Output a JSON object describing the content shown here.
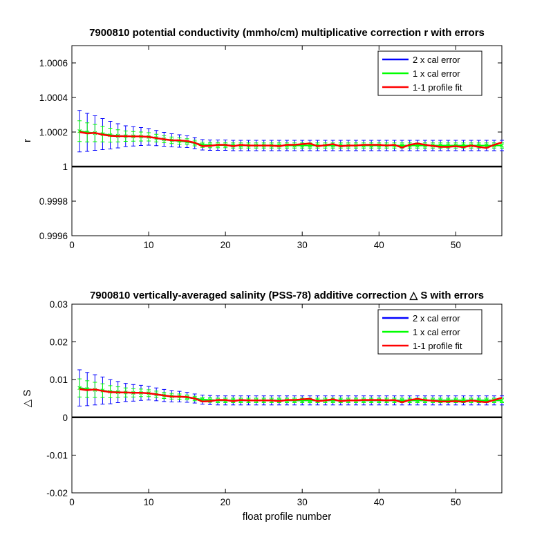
{
  "chart_data": [
    {
      "type": "line",
      "title": "7900810 potential conductivity (mmho/cm) multiplicative correction r with errors",
      "xlabel": "",
      "ylabel": "r",
      "xlim": [
        0,
        56
      ],
      "ylim": [
        0.9996,
        1.0007
      ],
      "x_ticks": [
        0,
        10,
        20,
        30,
        40,
        50
      ],
      "y_ticks": [
        0.9996,
        0.9998,
        1,
        1.0002,
        1.0004,
        1.0006
      ],
      "y_tick_labels": [
        "0.9996",
        "0.9998",
        "1",
        "1.0002",
        "1.0004",
        "1.0006"
      ],
      "reference_line": 1,
      "legend": {
        "position": "top-right",
        "entries": [
          {
            "label": "2 x cal error",
            "color": "#0000ff"
          },
          {
            "label": "1 x cal error",
            "color": "#00ff00"
          },
          {
            "label": "1-1 profile fit",
            "color": "#ff0000"
          }
        ]
      },
      "x": [
        1,
        2,
        3,
        4,
        5,
        6,
        7,
        8,
        9,
        10,
        11,
        12,
        13,
        14,
        15,
        16,
        17,
        18,
        19,
        20,
        21,
        22,
        23,
        24,
        25,
        26,
        27,
        28,
        29,
        30,
        31,
        32,
        33,
        34,
        35,
        36,
        37,
        38,
        39,
        40,
        41,
        42,
        43,
        44,
        45,
        46,
        47,
        48,
        49,
        50,
        51,
        52,
        53,
        54,
        55,
        56
      ],
      "series": [
        {
          "name": "1-1 profile fit",
          "color": "#ff0000",
          "values": [
            1.0002,
            1.000192,
            1.000195,
            1.000185,
            1.000178,
            1.000176,
            1.000176,
            1.000175,
            1.000175,
            1.000172,
            1.000165,
            1.000158,
            1.000152,
            1.000152,
            1.000148,
            1.000138,
            1.000118,
            1.00012,
            1.000126,
            1.000126,
            1.000118,
            1.000126,
            1.000122,
            1.000122,
            1.000122,
            1.000122,
            1.000118,
            1.000126,
            1.000126,
            1.00013,
            1.000134,
            1.000118,
            1.000124,
            1.00013,
            1.000118,
            1.000122,
            1.000122,
            1.000126,
            1.000126,
            1.000126,
            1.000122,
            1.000126,
            1.00011,
            1.000126,
            1.000134,
            1.000126,
            1.00012,
            1.000114,
            1.000114,
            1.000118,
            1.000112,
            1.000122,
            1.000114,
            1.000108,
            1.000126,
            1.00014
          ]
        },
        {
          "name": "1 x cal error",
          "color": "#00ff00",
          "values": [
            1.000205,
            1.000198,
            1.000194,
            1.000188,
            1.000182,
            1.000178,
            1.000176,
            1.000175,
            1.000174,
            1.000172,
            1.000165,
            1.000158,
            1.000152,
            1.000148,
            1.000144,
            1.000136,
            1.000126,
            1.000124,
            1.000124,
            1.000124,
            1.000122,
            1.000122,
            1.000122,
            1.000122,
            1.000122,
            1.000122,
            1.000122,
            1.000122,
            1.000122,
            1.000122,
            1.000122,
            1.000122,
            1.000122,
            1.000122,
            1.000122,
            1.000122,
            1.000122,
            1.000122,
            1.000122,
            1.000122,
            1.000122,
            1.000122,
            1.000122,
            1.000122,
            1.000122,
            1.000122,
            1.000122,
            1.000122,
            1.000122,
            1.000122,
            1.000122,
            1.000122,
            1.000122,
            1.000122,
            1.000122,
            1.000122
          ],
          "error": [
            6e-05,
            5.5e-05,
            5e-05,
            4.5e-05,
            4e-05,
            3.5e-05,
            3e-05,
            2.8e-05,
            2.6e-05,
            2.4e-05,
            2.2e-05,
            2e-05,
            1.9e-05,
            1.8e-05,
            1.7e-05,
            1.6e-05,
            1.5e-05,
            1.5e-05,
            1.5e-05,
            1.5e-05,
            1.5e-05,
            1.5e-05,
            1.5e-05,
            1.5e-05,
            1.5e-05,
            1.5e-05,
            1.5e-05,
            1.5e-05,
            1.5e-05,
            1.5e-05,
            1.5e-05,
            1.5e-05,
            1.5e-05,
            1.5e-05,
            1.5e-05,
            1.5e-05,
            1.5e-05,
            1.5e-05,
            1.5e-05,
            1.5e-05,
            1.5e-05,
            1.5e-05,
            1.5e-05,
            1.5e-05,
            1.5e-05,
            1.5e-05,
            1.5e-05,
            1.5e-05,
            1.5e-05,
            1.5e-05,
            1.5e-05,
            1.5e-05,
            1.5e-05,
            1.5e-05,
            1.5e-05,
            1.5e-05
          ]
        },
        {
          "name": "2 x cal error",
          "color": "#0000ff",
          "values": [
            1.000205,
            1.000198,
            1.000194,
            1.000188,
            1.000182,
            1.000178,
            1.000176,
            1.000175,
            1.000174,
            1.000172,
            1.000165,
            1.000158,
            1.000152,
            1.000148,
            1.000144,
            1.000136,
            1.000126,
            1.000124,
            1.000124,
            1.000124,
            1.000122,
            1.000122,
            1.000122,
            1.000122,
            1.000122,
            1.000122,
            1.000122,
            1.000122,
            1.000122,
            1.000122,
            1.000122,
            1.000122,
            1.000122,
            1.000122,
            1.000122,
            1.000122,
            1.000122,
            1.000122,
            1.000122,
            1.000122,
            1.000122,
            1.000122,
            1.000122,
            1.000122,
            1.000122,
            1.000122,
            1.000122,
            1.000122,
            1.000122,
            1.000122,
            1.000122,
            1.000122,
            1.000122,
            1.000122,
            1.000122,
            1.000122
          ],
          "error": [
            0.00012,
            0.00011,
            0.0001,
            9e-05,
            8e-05,
            7e-05,
            6e-05,
            5.6e-05,
            5.2e-05,
            4.8e-05,
            4.4e-05,
            4e-05,
            3.8e-05,
            3.6e-05,
            3.4e-05,
            3.2e-05,
            3e-05,
            3e-05,
            3e-05,
            3e-05,
            3e-05,
            3e-05,
            3e-05,
            3e-05,
            3e-05,
            3e-05,
            3e-05,
            3e-05,
            3e-05,
            3e-05,
            3e-05,
            3e-05,
            3e-05,
            3e-05,
            3e-05,
            3e-05,
            3e-05,
            3e-05,
            3e-05,
            3e-05,
            3e-05,
            3e-05,
            3e-05,
            3e-05,
            3e-05,
            3e-05,
            3e-05,
            3e-05,
            3e-05,
            3e-05,
            3e-05,
            3e-05,
            3e-05,
            3e-05,
            3e-05,
            3e-05
          ]
        }
      ]
    },
    {
      "type": "line",
      "title": "7900810 vertically-averaged salinity (PSS-78) additive correction △ S with errors",
      "xlabel": "float profile number",
      "ylabel": "△ S",
      "xlim": [
        0,
        56
      ],
      "ylim": [
        -0.02,
        0.03
      ],
      "x_ticks": [
        0,
        10,
        20,
        30,
        40,
        50
      ],
      "y_ticks": [
        -0.02,
        -0.01,
        0,
        0.01,
        0.02,
        0.03
      ],
      "y_tick_labels": [
        "-0.02",
        "-0.01",
        "0",
        "0.01",
        "0.02",
        "0.03"
      ],
      "reference_line": 0,
      "legend": {
        "position": "top-right",
        "entries": [
          {
            "label": "2 x cal error",
            "color": "#0000ff"
          },
          {
            "label": "1 x cal error",
            "color": "#00ff00"
          },
          {
            "label": "1-1 profile fit",
            "color": "#ff0000"
          }
        ]
      },
      "x": [
        1,
        2,
        3,
        4,
        5,
        6,
        7,
        8,
        9,
        10,
        11,
        12,
        13,
        14,
        15,
        16,
        17,
        18,
        19,
        20,
        21,
        22,
        23,
        24,
        25,
        26,
        27,
        28,
        29,
        30,
        31,
        32,
        33,
        34,
        35,
        36,
        37,
        38,
        39,
        40,
        41,
        42,
        43,
        44,
        45,
        46,
        47,
        48,
        49,
        50,
        51,
        52,
        53,
        54,
        55,
        56
      ],
      "series": [
        {
          "name": "1-1 profile fit",
          "color": "#ff0000",
          "values": [
            0.0075,
            0.0072,
            0.0074,
            0.007,
            0.0067,
            0.0066,
            0.0066,
            0.0065,
            0.0065,
            0.0064,
            0.0061,
            0.0058,
            0.0055,
            0.0055,
            0.0054,
            0.005,
            0.0042,
            0.0043,
            0.0046,
            0.0046,
            0.0043,
            0.0046,
            0.0045,
            0.0045,
            0.0045,
            0.0045,
            0.0043,
            0.0046,
            0.0046,
            0.0048,
            0.0049,
            0.0043,
            0.0045,
            0.0048,
            0.0043,
            0.0045,
            0.0045,
            0.0046,
            0.0046,
            0.0046,
            0.0045,
            0.0046,
            0.004,
            0.0046,
            0.0049,
            0.0046,
            0.0044,
            0.0042,
            0.0042,
            0.0043,
            0.0041,
            0.0045,
            0.0042,
            0.004,
            0.0046,
            0.0052
          ]
        },
        {
          "name": "1 x cal error",
          "color": "#00ff00",
          "values": [
            0.0078,
            0.0075,
            0.0073,
            0.0071,
            0.0068,
            0.0067,
            0.0066,
            0.0065,
            0.0065,
            0.0064,
            0.0061,
            0.0058,
            0.0056,
            0.0055,
            0.0053,
            0.005,
            0.0047,
            0.0046,
            0.0045,
            0.0045,
            0.0045,
            0.0045,
            0.0045,
            0.0045,
            0.0045,
            0.0045,
            0.0045,
            0.0045,
            0.0045,
            0.0045,
            0.0045,
            0.0045,
            0.0045,
            0.0045,
            0.0045,
            0.0045,
            0.0045,
            0.0045,
            0.0045,
            0.0045,
            0.0045,
            0.0045,
            0.0045,
            0.0045,
            0.0045,
            0.0045,
            0.0045,
            0.0045,
            0.0045,
            0.0045,
            0.0045,
            0.0045,
            0.0045,
            0.0045,
            0.0045,
            0.0045
          ],
          "error": [
            0.0024,
            0.0022,
            0.002,
            0.0018,
            0.0016,
            0.0014,
            0.0012,
            0.0011,
            0.001,
            0.0009,
            0.00085,
            0.0008,
            0.00075,
            0.0007,
            0.00065,
            0.0006,
            0.0006,
            0.0006,
            0.0006,
            0.0006,
            0.0006,
            0.0006,
            0.0006,
            0.0006,
            0.0006,
            0.0006,
            0.0006,
            0.0006,
            0.0006,
            0.0006,
            0.0006,
            0.0006,
            0.0006,
            0.0006,
            0.0006,
            0.0006,
            0.0006,
            0.0006,
            0.0006,
            0.0006,
            0.0006,
            0.0006,
            0.0006,
            0.0006,
            0.0006,
            0.0006,
            0.0006,
            0.0006,
            0.0006,
            0.0006,
            0.0006,
            0.0006,
            0.0006,
            0.0006,
            0.0006,
            0.0006
          ]
        },
        {
          "name": "2 x cal error",
          "color": "#0000ff",
          "values": [
            0.0078,
            0.0075,
            0.0073,
            0.0071,
            0.0068,
            0.0067,
            0.0066,
            0.0065,
            0.0065,
            0.0064,
            0.0061,
            0.0058,
            0.0056,
            0.0055,
            0.0053,
            0.005,
            0.0047,
            0.0046,
            0.0045,
            0.0045,
            0.0045,
            0.0045,
            0.0045,
            0.0045,
            0.0045,
            0.0045,
            0.0045,
            0.0045,
            0.0045,
            0.0045,
            0.0045,
            0.0045,
            0.0045,
            0.0045,
            0.0045,
            0.0045,
            0.0045,
            0.0045,
            0.0045,
            0.0045,
            0.0045,
            0.0045,
            0.0045,
            0.0045,
            0.0045,
            0.0045,
            0.0045,
            0.0045,
            0.0045,
            0.0045,
            0.0045,
            0.0045,
            0.0045,
            0.0045,
            0.0045,
            0.0045
          ],
          "error": [
            0.0048,
            0.0044,
            0.004,
            0.0036,
            0.0032,
            0.0028,
            0.0024,
            0.0022,
            0.002,
            0.0018,
            0.0017,
            0.0016,
            0.0015,
            0.0014,
            0.0013,
            0.0012,
            0.0012,
            0.0012,
            0.0012,
            0.0012,
            0.0012,
            0.0012,
            0.0012,
            0.0012,
            0.0012,
            0.0012,
            0.0012,
            0.0012,
            0.0012,
            0.0012,
            0.0012,
            0.0012,
            0.0012,
            0.0012,
            0.0012,
            0.0012,
            0.0012,
            0.0012,
            0.0012,
            0.0012,
            0.0012,
            0.0012,
            0.0012,
            0.0012,
            0.0012,
            0.0012,
            0.0012,
            0.0012,
            0.0012,
            0.0012,
            0.0012,
            0.0012,
            0.0012,
            0.0012,
            0.0012,
            0.0012
          ]
        }
      ]
    }
  ]
}
